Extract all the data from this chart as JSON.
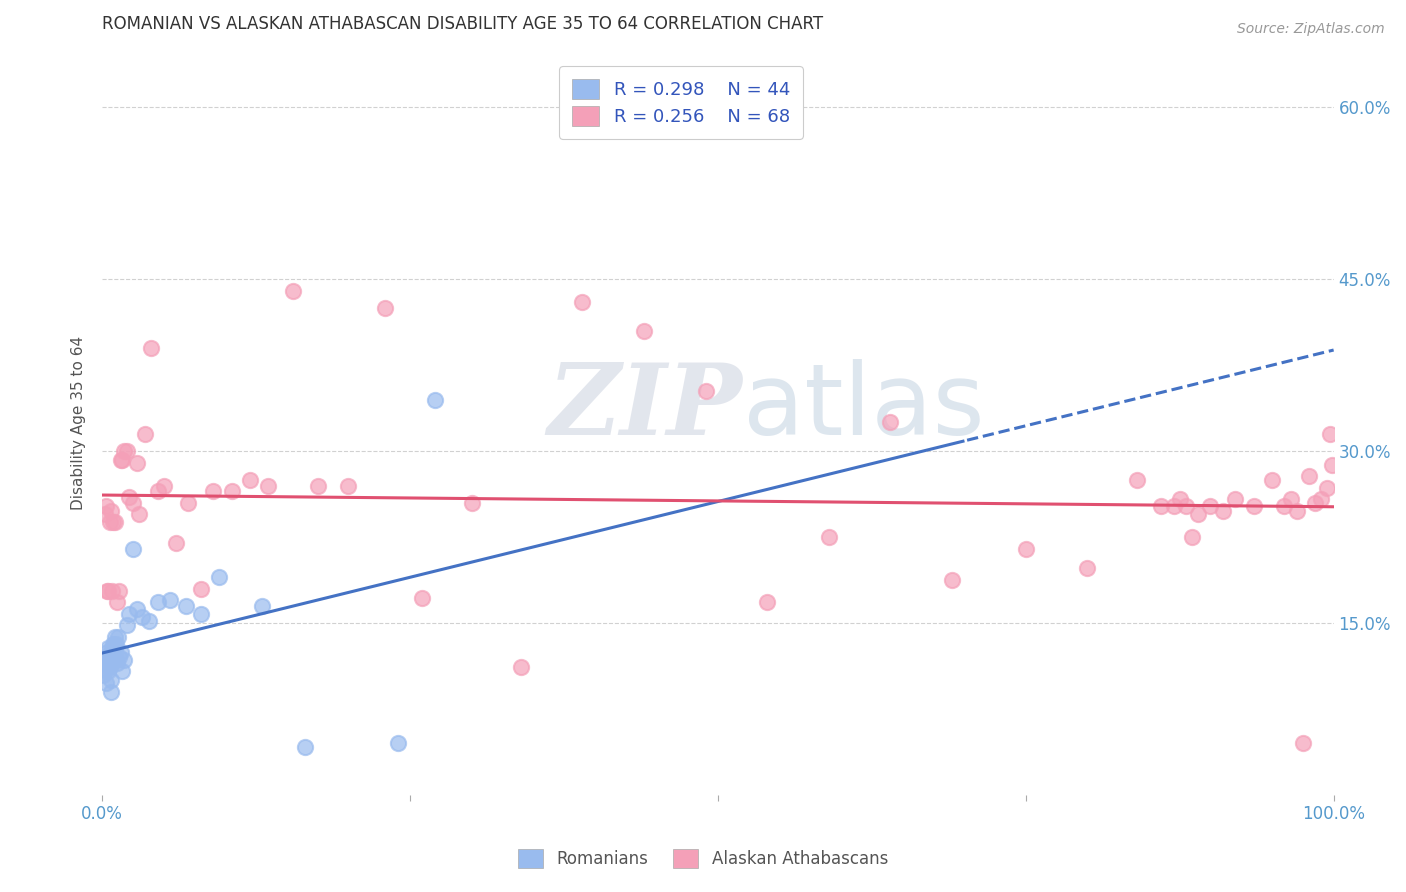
{
  "title": "ROMANIAN VS ALASKAN ATHABASCAN DISABILITY AGE 35 TO 64 CORRELATION CHART",
  "source": "Source: ZipAtlas.com",
  "ylabel": "Disability Age 35 to 64",
  "xlim": [
    0.0,
    1.0
  ],
  "ylim": [
    0.0,
    0.65
  ],
  "ytick_vals": [
    0.15,
    0.3,
    0.45,
    0.6
  ],
  "ytick_labels": [
    "15.0%",
    "30.0%",
    "45.0%",
    "60.0%"
  ],
  "romanian_color": "#99bbee",
  "athabascan_color": "#f4a0b8",
  "romanian_line_color": "#4472c4",
  "athabascan_line_color": "#e05070",
  "watermark_zip": "ZIP",
  "watermark_atlas": "atlas",
  "background_color": "#ffffff",
  "grid_color": "#cccccc",
  "romanian_x": [
    0.001,
    0.002,
    0.002,
    0.003,
    0.003,
    0.004,
    0.004,
    0.005,
    0.005,
    0.005,
    0.006,
    0.006,
    0.007,
    0.007,
    0.007,
    0.008,
    0.008,
    0.009,
    0.009,
    0.01,
    0.01,
    0.011,
    0.011,
    0.012,
    0.013,
    0.014,
    0.015,
    0.016,
    0.018,
    0.02,
    0.022,
    0.025,
    0.028,
    0.032,
    0.038,
    0.045,
    0.055,
    0.068,
    0.08,
    0.095,
    0.13,
    0.165,
    0.24,
    0.27
  ],
  "romanian_y": [
    0.105,
    0.11,
    0.115,
    0.098,
    0.12,
    0.115,
    0.125,
    0.108,
    0.118,
    0.128,
    0.112,
    0.122,
    0.09,
    0.1,
    0.115,
    0.118,
    0.128,
    0.122,
    0.132,
    0.128,
    0.138,
    0.118,
    0.132,
    0.115,
    0.138,
    0.12,
    0.125,
    0.108,
    0.118,
    0.148,
    0.158,
    0.215,
    0.162,
    0.155,
    0.152,
    0.168,
    0.17,
    0.165,
    0.158,
    0.19,
    0.165,
    0.042,
    0.045,
    0.345
  ],
  "athabascan_x": [
    0.002,
    0.003,
    0.004,
    0.005,
    0.006,
    0.007,
    0.008,
    0.009,
    0.01,
    0.012,
    0.014,
    0.015,
    0.016,
    0.018,
    0.02,
    0.022,
    0.025,
    0.028,
    0.03,
    0.035,
    0.04,
    0.045,
    0.05,
    0.06,
    0.07,
    0.08,
    0.09,
    0.105,
    0.12,
    0.135,
    0.155,
    0.175,
    0.2,
    0.23,
    0.26,
    0.3,
    0.34,
    0.39,
    0.44,
    0.49,
    0.54,
    0.59,
    0.64,
    0.69,
    0.75,
    0.8,
    0.84,
    0.86,
    0.87,
    0.875,
    0.88,
    0.885,
    0.89,
    0.9,
    0.91,
    0.92,
    0.935,
    0.95,
    0.96,
    0.965,
    0.97,
    0.975,
    0.98,
    0.985,
    0.99,
    0.995,
    0.997,
    0.999
  ],
  "athabascan_y": [
    0.245,
    0.252,
    0.178,
    0.178,
    0.238,
    0.248,
    0.178,
    0.238,
    0.238,
    0.168,
    0.178,
    0.292,
    0.292,
    0.3,
    0.3,
    0.26,
    0.255,
    0.29,
    0.245,
    0.315,
    0.39,
    0.265,
    0.27,
    0.22,
    0.255,
    0.18,
    0.265,
    0.265,
    0.275,
    0.27,
    0.44,
    0.27,
    0.27,
    0.425,
    0.172,
    0.255,
    0.112,
    0.43,
    0.405,
    0.352,
    0.168,
    0.225,
    0.325,
    0.188,
    0.215,
    0.198,
    0.275,
    0.252,
    0.252,
    0.258,
    0.252,
    0.225,
    0.245,
    0.252,
    0.248,
    0.258,
    0.252,
    0.275,
    0.252,
    0.258,
    0.248,
    0.045,
    0.278,
    0.255,
    0.258,
    0.268,
    0.315,
    0.288
  ]
}
